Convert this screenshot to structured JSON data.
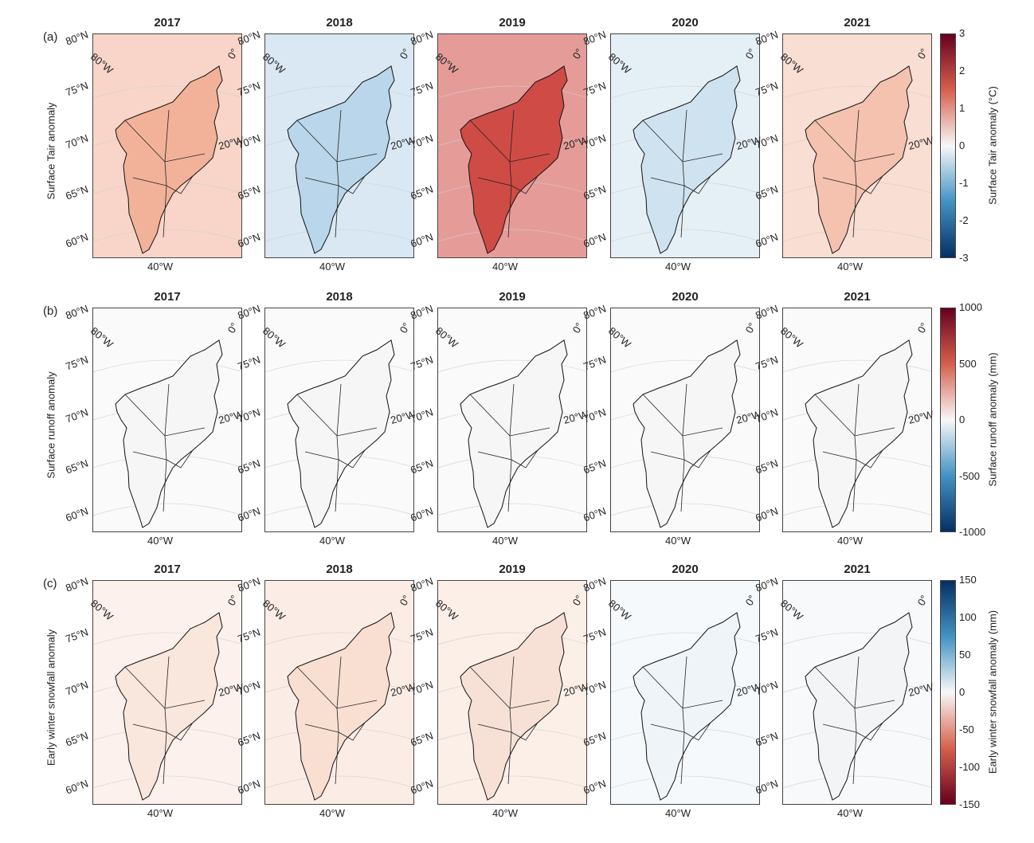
{
  "rows": [
    {
      "panel_letter": "(a)",
      "row_label": "Surface Tair anomaly",
      "years": [
        "2017",
        "2018",
        "2019",
        "2020",
        "2021"
      ],
      "fills": [
        "#f2b29a",
        "#b9d6ea",
        "#cf4b45",
        "#cfe2ef",
        "#f4c2ae"
      ],
      "colorbar": {
        "title": "Surface Tair anomaly (°C)",
        "ticks": [
          "3",
          "2",
          "1",
          "0",
          "-1",
          "-2",
          "-3"
        ],
        "colors": [
          "#67001f",
          "#d6604d",
          "#f7f7f7",
          "#4393c3",
          "#053061"
        ]
      }
    },
    {
      "panel_letter": "(b)",
      "row_label": "Surface runoff anomaly",
      "years": [
        "2017",
        "2018",
        "2019",
        "2020",
        "2021"
      ],
      "fills": [
        "#f6f6f6",
        "#f6f6f6",
        "#f6f6f6",
        "#f6f6f6",
        "#f6f6f6"
      ],
      "colorbar": {
        "title": "Surface runoff anomaly (mm)",
        "ticks": [
          "1000",
          "500",
          "0",
          "-500",
          "-1000"
        ],
        "colors": [
          "#67001f",
          "#d6604d",
          "#f7f7f7",
          "#4393c3",
          "#053061"
        ]
      }
    },
    {
      "panel_letter": "(c)",
      "row_label": "Early winter snowfall anomaly",
      "years": [
        "2017",
        "2018",
        "2019",
        "2020",
        "2021"
      ],
      "fills": [
        "#f9e6dd",
        "#f8dfd2",
        "#f7e1d6",
        "#eef4f8",
        "#f3f4f6"
      ],
      "colorbar": {
        "title": "Early winter snowfall anomaly (mm)",
        "ticks": [
          "150",
          "100",
          "50",
          "0",
          "-50",
          "-100",
          "-150"
        ],
        "colors": [
          "#053061",
          "#4393c3",
          "#f7f7f7",
          "#d6604d",
          "#67001f"
        ]
      }
    }
  ],
  "map_labels": {
    "lat": [
      "80°N",
      "75°N",
      "70°N",
      "65°N",
      "60°N"
    ],
    "lon_nw": "80°W",
    "lon_zero": "0°",
    "lon_east": "20°W",
    "lon_bottom": "40°W"
  }
}
